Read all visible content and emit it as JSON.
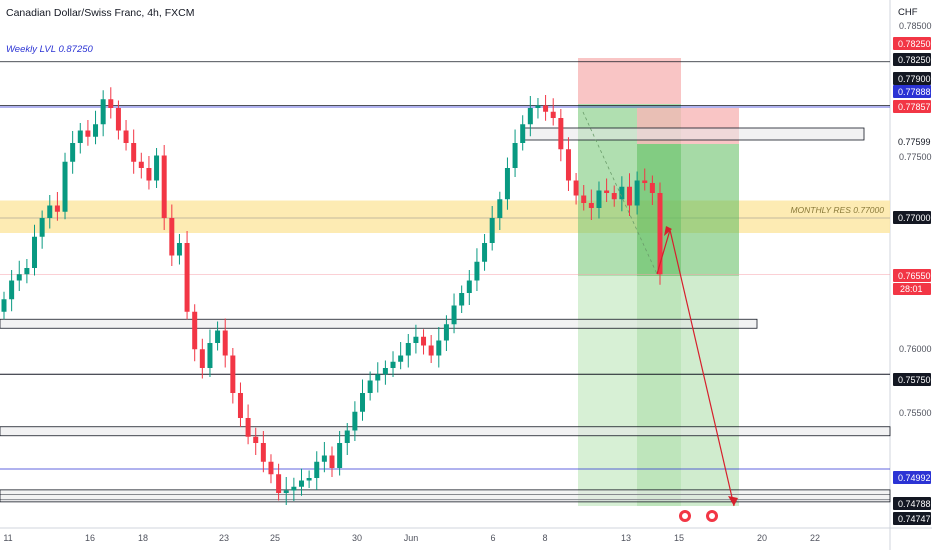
{
  "header": {
    "title": "Canadian Dollar/Swiss Franc, 4h, FXCM",
    "weekly_label": "Weekly LVL 0.87250"
  },
  "axis": {
    "currency": "CHF",
    "price_ticks": [
      "0.78500",
      "0.77500",
      "0.76000",
      "0.75500"
    ],
    "time_ticks": [
      "11",
      "16",
      "18",
      "23",
      "25",
      "30",
      "Jun",
      "6",
      "8",
      "13",
      "15",
      "20",
      "22"
    ],
    "countdown": "28:01"
  },
  "annotations": {
    "monthly_res": "MONTHLY RES 0.77000"
  },
  "price_tags": [
    {
      "label": "0.78250",
      "bg": "#f23645",
      "fg": "#ffffff"
    },
    {
      "label": "0.78250",
      "bg": "#131722",
      "fg": "#ffffff"
    },
    {
      "label": "0.77900",
      "bg": "#131722",
      "fg": "#ffffff"
    },
    {
      "label": "0.77888",
      "bg": "#2b33d4",
      "fg": "#ffffff"
    },
    {
      "label": "0.77857",
      "bg": "#f23645",
      "fg": "#ffffff"
    },
    {
      "label": "0.77599",
      "bg": "#ffffff",
      "fg": "#131722"
    },
    {
      "label": "0.77000",
      "bg": "#131722",
      "fg": "#ffffff"
    },
    {
      "label": "0.76550",
      "bg": "#f23645",
      "fg": "#ffffff"
    },
    {
      "label": "0.75750",
      "bg": "#131722",
      "fg": "#ffffff"
    },
    {
      "label": "0.74992",
      "bg": "#2b33d4",
      "fg": "#ffffff"
    },
    {
      "label": "0.74788",
      "bg": "#131722",
      "fg": "#ffffff"
    },
    {
      "label": "0.74747",
      "bg": "#131722",
      "fg": "#ffffff"
    }
  ],
  "colors": {
    "bull": "#089981",
    "bear": "#f23645",
    "zone": "#fde8a6",
    "blue_line": "#2b33d4"
  },
  "chart_data": {
    "type": "candlestick",
    "title": "Canadian Dollar/Swiss Franc, 4h, FXCM",
    "y_unit": "CHF",
    "ylim": [
      0.747,
      0.785
    ],
    "horizontal_levels": [
      0.7825,
      0.779,
      0.77888,
      0.77857,
      0.77,
      0.7655,
      0.7575,
      0.74992,
      0.74788,
      0.74747
    ],
    "zones": [
      {
        "name": "MONTHLY RES 0.77000",
        "from": 0.7688,
        "to": 0.7714
      }
    ],
    "candles_close_path": [
      0.7635,
      0.765,
      0.7655,
      0.766,
      0.7685,
      0.77,
      0.771,
      0.7705,
      0.7745,
      0.776,
      0.777,
      0.7765,
      0.7775,
      0.7795,
      0.7788,
      0.777,
      0.776,
      0.7745,
      0.774,
      0.773,
      0.775,
      0.77,
      0.767,
      0.768,
      0.7625,
      0.7595,
      0.758,
      0.76,
      0.761,
      0.759,
      0.756,
      0.754,
      0.7525,
      0.752,
      0.7505,
      0.7495,
      0.748,
      0.7482,
      0.7485,
      0.749,
      0.7492,
      0.7505,
      0.751,
      0.75,
      0.752,
      0.753,
      0.7545,
      0.756,
      0.757,
      0.7575,
      0.758,
      0.7585,
      0.759,
      0.76,
      0.7605,
      0.7598,
      0.759,
      0.7602,
      0.7615,
      0.763,
      0.764,
      0.765,
      0.7665,
      0.768,
      0.77,
      0.7715,
      0.774,
      0.776,
      0.7775,
      0.7788,
      0.779,
      0.7785,
      0.778,
      0.7755,
      0.773,
      0.7718,
      0.7712,
      0.7708,
      0.7722,
      0.772,
      0.7715,
      0.7725,
      0.771,
      0.773,
      0.7728,
      0.772,
      0.7655
    ]
  }
}
